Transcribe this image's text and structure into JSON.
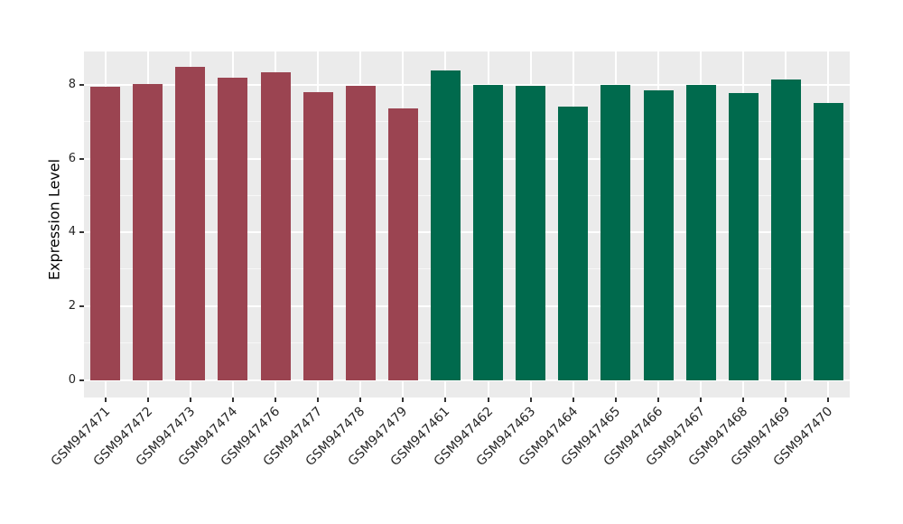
{
  "chart_data": {
    "type": "bar",
    "title": "",
    "xlabel": "",
    "ylabel": "Expression Level",
    "categories": [
      "GSM947471",
      "GSM947472",
      "GSM947473",
      "GSM947474",
      "GSM947476",
      "GSM947477",
      "GSM947478",
      "GSM947479",
      "GSM947461",
      "GSM947462",
      "GSM947463",
      "GSM947464",
      "GSM947465",
      "GSM947466",
      "GSM947467",
      "GSM947468",
      "GSM947469",
      "GSM947470"
    ],
    "values": [
      7.95,
      8.02,
      8.48,
      8.2,
      8.34,
      7.79,
      7.98,
      7.37,
      8.39,
      8.0,
      7.97,
      7.42,
      8.0,
      7.86,
      7.99,
      7.77,
      8.14,
      7.5
    ],
    "bar_colors": [
      "#9B4451",
      "#9B4451",
      "#9B4451",
      "#9B4451",
      "#9B4451",
      "#9B4451",
      "#9B4451",
      "#9B4451",
      "#006A4D",
      "#006A4D",
      "#006A4D",
      "#006A4D",
      "#006A4D",
      "#006A4D",
      "#006A4D",
      "#006A4D",
      "#006A4D",
      "#006A4D"
    ],
    "yticks": [
      0,
      2,
      4,
      6,
      8
    ],
    "yticks_minor": [
      1,
      3,
      5,
      7
    ],
    "ylim": [
      0,
      8.9
    ],
    "grid": "on",
    "legend": "none",
    "x_label_rotation_deg": 45
  },
  "colors": {
    "figure_bg": "#FFFFFF",
    "panel_bg": "#EBEBEB",
    "gridline": "#FFFFFF",
    "tick_mark": "#333333",
    "tick_label": "#262626",
    "axis_title": "#000000"
  }
}
